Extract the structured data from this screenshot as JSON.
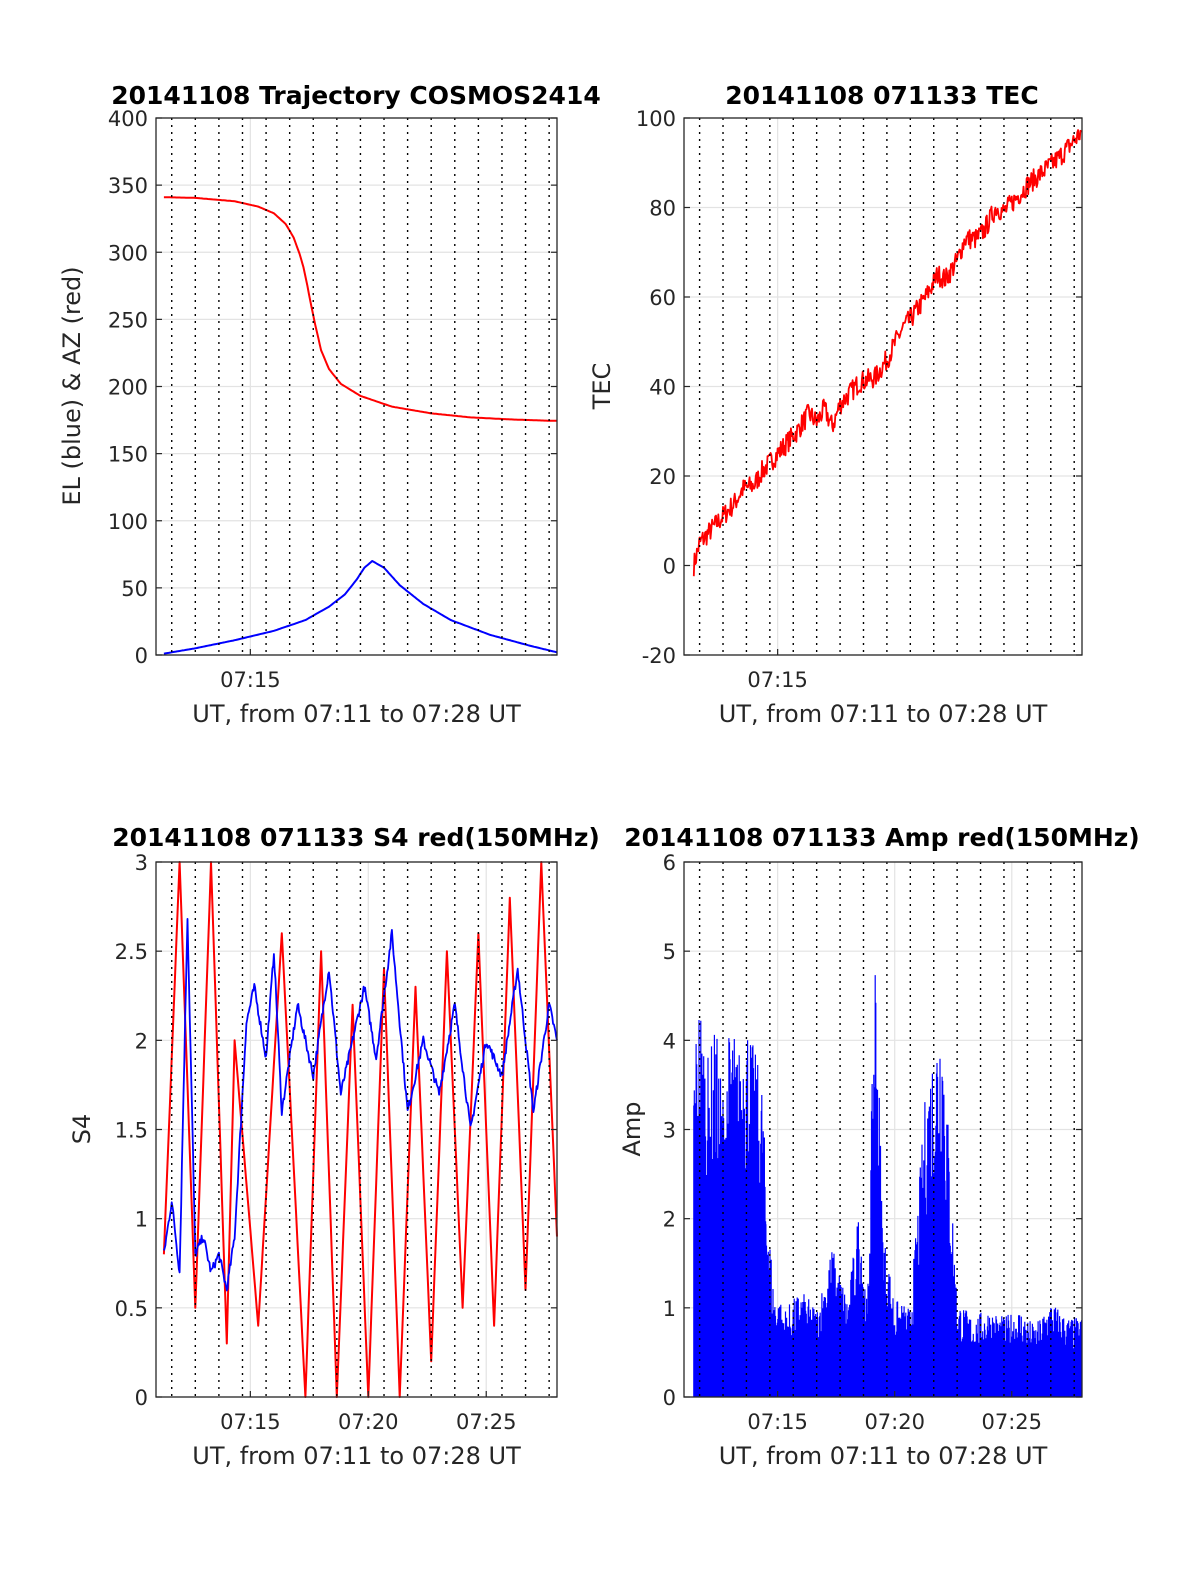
{
  "x_range": [
    0,
    1020
  ],
  "chart_data": [
    {
      "type": "line",
      "title": "20141108 Trajectory COSMOS2414",
      "xlabel": "UT, from 07:11 to 07:28 UT",
      "ylabel": "EL (blue) & AZ (red)",
      "ylim": [
        0,
        400
      ],
      "yticks": [
        0,
        50,
        100,
        150,
        200,
        250,
        300,
        350,
        400
      ],
      "xtick_labels": [
        "07:15"
      ],
      "xtick_seconds": [
        240
      ],
      "grid": true,
      "series": [
        {
          "color": "#ff0000",
          "x": [
            20,
            100,
            200,
            260,
            300,
            330,
            350,
            365,
            375,
            385,
            395,
            405,
            420,
            440,
            470,
            520,
            600,
            700,
            800,
            900,
            1000,
            1020
          ],
          "values": [
            341,
            340.5,
            338,
            334,
            329,
            321,
            311,
            299,
            289,
            275,
            260,
            246,
            227,
            213,
            202,
            193,
            185,
            180,
            177,
            175.5,
            174.5,
            174.5
          ]
        },
        {
          "color": "#0000ff",
          "x": [
            20,
            100,
            200,
            300,
            380,
            440,
            480,
            510,
            530,
            550,
            580,
            620,
            680,
            750,
            850,
            950,
            1020
          ],
          "values": [
            1,
            5,
            11,
            18,
            26,
            36,
            45,
            56,
            65,
            70,
            65,
            52,
            38,
            26,
            15,
            7,
            2
          ]
        }
      ]
    },
    {
      "type": "line",
      "title": "20141108 071133 TEC",
      "xlabel": "UT, from 07:11 to 07:28 UT",
      "ylabel": "TEC",
      "ylim": [
        -20,
        100
      ],
      "yticks": [
        -20,
        0,
        20,
        40,
        60,
        80,
        100
      ],
      "xtick_labels": [
        "07:15"
      ],
      "xtick_seconds": [
        240
      ],
      "grid": true,
      "series": [
        {
          "color": "#ff0000",
          "x": [
            25,
            40,
            60,
            80,
            100,
            130,
            150,
            180,
            200,
            240,
            270,
            290,
            320,
            340,
            360,
            380,
            400,
            420,
            450,
            490,
            520,
            560,
            580,
            620,
            650,
            670,
            700,
            720,
            750,
            770,
            800,
            820,
            850,
            880,
            920,
            960,
            990,
            1020
          ],
          "values": [
            0,
            5,
            7,
            9,
            11,
            14,
            17,
            18,
            21,
            25,
            28,
            30,
            34,
            32,
            35,
            31,
            36,
            38,
            41,
            42,
            46,
            53,
            55,
            60,
            65,
            64,
            68,
            73,
            73,
            75,
            80,
            79,
            82,
            85,
            88,
            91,
            94,
            97
          ],
          "noise": 0.6
        }
      ]
    },
    {
      "type": "line",
      "title": "20141108 071133 S4 red(150MHz)",
      "xlabel": "UT, from 07:11 to 07:28 UT",
      "ylabel": "S4",
      "ylim": [
        0,
        3
      ],
      "yticks": [
        0,
        0.5,
        1,
        1.5,
        2,
        2.5,
        3
      ],
      "xtick_labels": [
        "07:15",
        "07:20",
        "07:25"
      ],
      "xtick_seconds": [
        240,
        540,
        840
      ],
      "grid": true,
      "series": [
        {
          "color": "#ff0000",
          "x": [
            20,
            60,
            100,
            140,
            180,
            200,
            260,
            320,
            380,
            420,
            460,
            500,
            540,
            580,
            620,
            660,
            700,
            740,
            780,
            820,
            860,
            900,
            940,
            980,
            1020
          ],
          "values": [
            0.8,
            3,
            0.5,
            3,
            0.3,
            2,
            0.4,
            2.6,
            0,
            2.5,
            0,
            2.2,
            0,
            2.4,
            0,
            2.3,
            0.2,
            2.5,
            0.5,
            2.6,
            0.4,
            2.8,
            0.6,
            3,
            0.9
          ]
        },
        {
          "color": "#0000ff",
          "x": [
            20,
            40,
            60,
            80,
            100,
            120,
            140,
            160,
            180,
            200,
            230,
            250,
            280,
            300,
            320,
            360,
            400,
            440,
            470,
            500,
            530,
            560,
            600,
            640,
            680,
            720,
            760,
            800,
            840,
            880,
            920,
            960,
            1000,
            1020
          ],
          "values": [
            0.8,
            1.1,
            0.7,
            2.7,
            0.8,
            0.9,
            0.7,
            0.8,
            0.6,
            0.9,
            2.1,
            2.3,
            1.9,
            2.5,
            1.6,
            2.2,
            1.8,
            2.4,
            1.7,
            2.0,
            2.3,
            1.9,
            2.6,
            1.6,
            2.0,
            1.7,
            2.2,
            1.5,
            2.0,
            1.8,
            2.4,
            1.6,
            2.2,
            2.0
          ],
          "noise": 0.25
        }
      ]
    },
    {
      "type": "line",
      "title": "20141108 071133 Amp red(150MHz)",
      "xlabel": "UT, from 07:11 to 07:28 UT",
      "ylabel": "Amp",
      "ylim": [
        0,
        6
      ],
      "yticks": [
        0,
        1,
        2,
        3,
        4,
        5,
        6
      ],
      "xtick_labels": [
        "07:15",
        "07:20",
        "07:25"
      ],
      "xtick_seconds": [
        240,
        540,
        840
      ],
      "grid": true,
      "series": [
        {
          "color": "#0000ff",
          "x": [
            25,
            40,
            60,
            80,
            100,
            120,
            140,
            160,
            180,
            200,
            210,
            230,
            260,
            300,
            340,
            380,
            420,
            450,
            470,
            490,
            510,
            540,
            580,
            620,
            660,
            700,
            740,
            780,
            820,
            860,
            900,
            940,
            980,
            1020
          ],
          "values": [
            3.9,
            4.6,
            3.8,
            4.2,
            3.5,
            4.3,
            3.9,
            4.4,
            3.9,
            3.6,
            2.5,
            1.2,
            1.0,
            1.2,
            1.0,
            1.7,
            1.1,
            2.2,
            1.0,
            5.2,
            1.9,
            1.1,
            1.0,
            3.5,
            4.6,
            1.1,
            0.9,
            1.0,
            0.9,
            1.0,
            0.8,
            1.1,
            0.9,
            0.9
          ],
          "spikes": true
        }
      ]
    }
  ]
}
